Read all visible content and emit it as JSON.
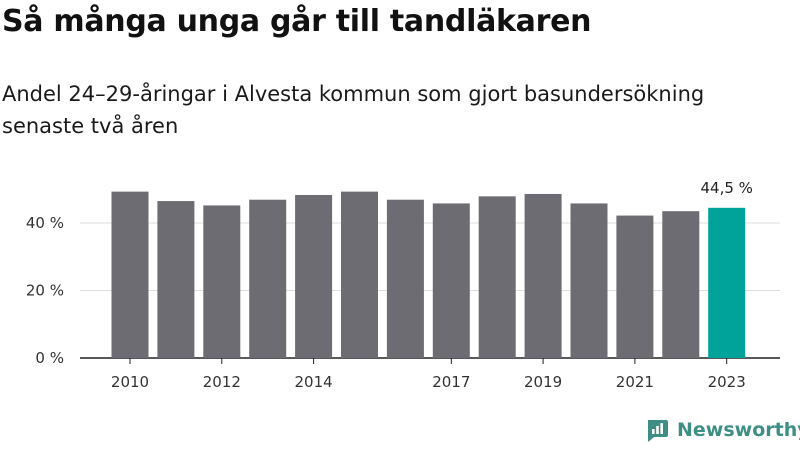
{
  "header": {
    "title": "Så många unga går till tandläkaren",
    "subtitle": "Andel 24–29-åringar i Alvesta kommun som gjort basundersökning senaste två åren"
  },
  "brand": {
    "name": "Newsworthy",
    "icon": "newsworthy-logo-icon",
    "color": "#3d8f86"
  },
  "colors": {
    "bar": "#6d6c72",
    "highlight": "#00a39a",
    "grid": "#dddddd",
    "axis": "#222222"
  },
  "chart_data": {
    "type": "bar",
    "categories": [
      "2010",
      "2011",
      "2012",
      "2013",
      "2014",
      "2015",
      "2016",
      "2017",
      "2018",
      "2019",
      "2020",
      "2021",
      "2022",
      "2023"
    ],
    "values": [
      49.3,
      46.5,
      45.2,
      46.9,
      48.3,
      49.3,
      46.9,
      45.8,
      47.9,
      48.6,
      45.8,
      42.2,
      43.5,
      44.5
    ],
    "x_tick_labels": [
      "2010",
      "",
      "2012",
      "",
      "2014",
      "",
      "",
      "2017",
      "",
      "2019",
      "",
      "2021",
      "",
      "2023"
    ],
    "y_ticks": [
      {
        "value": 0,
        "label": "0 %"
      },
      {
        "value": 20,
        "label": "20 %"
      },
      {
        "value": 40,
        "label": "40 %"
      }
    ],
    "ylim": [
      0,
      55
    ],
    "highlight_index": 13,
    "highlight_label": "44,5 %",
    "grid": true,
    "title": "",
    "xlabel": "",
    "ylabel": ""
  }
}
